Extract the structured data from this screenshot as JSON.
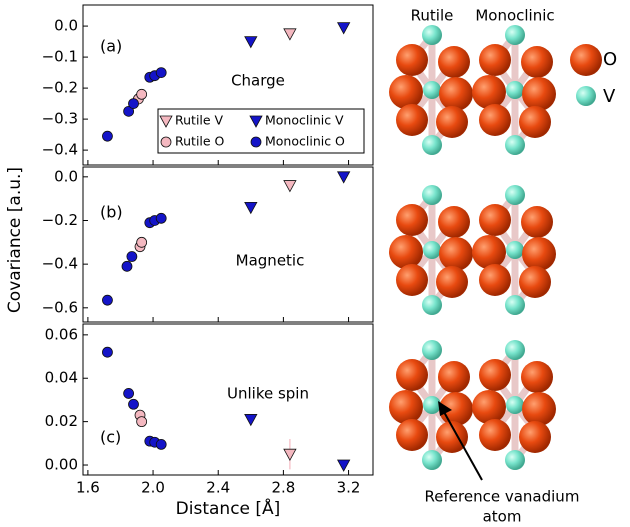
{
  "chart_data": [
    {
      "type": "scatter",
      "panel_label": "(a)",
      "annotation": "Charge",
      "xlim": [
        1.57,
        3.35
      ],
      "ylim": [
        -0.448,
        0.068
      ],
      "yticks": [
        {
          "value": 0,
          "label": "0.0"
        },
        {
          "value": -0.1,
          "label": "−0.1"
        },
        {
          "value": -0.2,
          "label": "−0.2"
        },
        {
          "value": -0.3,
          "label": "−0.3"
        },
        {
          "value": -0.4,
          "label": "−0.4"
        }
      ],
      "legend": "lower right",
      "series": [
        {
          "name": "Rutile V",
          "marker": "v",
          "color": "#f4b8c0",
          "x": [
            2.84
          ],
          "values": [
            -0.025
          ]
        },
        {
          "name": "Monoclinic V",
          "marker": "v",
          "color": "#1414c8",
          "x": [
            2.6,
            3.17
          ],
          "values": [
            -0.05,
            -0.005
          ]
        },
        {
          "name": "Rutile O",
          "marker": "o",
          "color": "#f4b8c0",
          "x": [
            1.91,
            1.93
          ],
          "values": [
            -0.235,
            -0.22
          ]
        },
        {
          "name": "Monoclinic O",
          "marker": "o",
          "color": "#1414c8",
          "x": [
            1.72,
            1.85,
            1.88,
            1.98,
            2.01,
            2.05
          ],
          "values": [
            -0.355,
            -0.275,
            -0.25,
            -0.165,
            -0.16,
            -0.15
          ]
        }
      ]
    },
    {
      "type": "scatter",
      "panel_label": "(b)",
      "annotation": "Magnetic",
      "ylabel": "Covariance [a.u.]",
      "xlim": [
        1.57,
        3.35
      ],
      "ylim": [
        -0.665,
        0.045
      ],
      "yticks": [
        {
          "value": 0,
          "label": "0.0"
        },
        {
          "value": -0.2,
          "label": "−0.2"
        },
        {
          "value": -0.4,
          "label": "−0.4"
        },
        {
          "value": -0.6,
          "label": "−0.6"
        }
      ],
      "series": [
        {
          "marker": "v",
          "color": "#f4b8c0",
          "x": [
            2.84
          ],
          "values": [
            -0.04
          ]
        },
        {
          "marker": "v",
          "color": "#1414c8",
          "x": [
            2.6,
            3.17
          ],
          "values": [
            -0.14,
            0.0
          ]
        },
        {
          "marker": "o",
          "color": "#f4b8c0",
          "x": [
            1.92,
            1.93
          ],
          "values": [
            -0.32,
            -0.3
          ]
        },
        {
          "marker": "o",
          "color": "#1414c8",
          "x": [
            1.72,
            1.84,
            1.87,
            1.98,
            2.01,
            2.05
          ],
          "values": [
            -0.565,
            -0.41,
            -0.365,
            -0.21,
            -0.2,
            -0.19
          ]
        }
      ]
    },
    {
      "type": "scatter",
      "panel_label": "(c)",
      "annotation": "Unlike spin",
      "xlabel": "Distance [Å]",
      "xlim": [
        1.57,
        3.35
      ],
      "ylim": [
        -0.0046,
        0.065
      ],
      "xticks": [
        1.6,
        {
          "value": 2,
          "label": "2.0"
        },
        2.4,
        2.8,
        3.2
      ],
      "yticks": [
        0.06,
        0.04,
        0.02,
        {
          "value": 0,
          "label": "0.00"
        }
      ],
      "series": [
        {
          "marker": "v",
          "color": "#f4b8c0",
          "x": [
            2.84
          ],
          "values": [
            0.005
          ],
          "errors": [
            0.007
          ]
        },
        {
          "marker": "v",
          "color": "#1414c8",
          "x": [
            2.6,
            3.17
          ],
          "values": [
            0.021,
            0.0
          ]
        },
        {
          "marker": "o",
          "color": "#f4b8c0",
          "x": [
            1.92,
            1.93
          ],
          "values": [
            0.023,
            0.02
          ]
        },
        {
          "marker": "o",
          "color": "#1414c8",
          "x": [
            1.72,
            1.85,
            1.88,
            1.98,
            2.01,
            2.05
          ],
          "values": [
            0.052,
            0.033,
            0.028,
            0.011,
            0.0105,
            0.0095
          ]
        }
      ]
    }
  ],
  "illustration": {
    "columns": [
      "Rutile",
      "Monoclinic"
    ],
    "legend": [
      "O",
      "V"
    ],
    "annotation": [
      "Reference vanadium",
      "atom"
    ]
  }
}
